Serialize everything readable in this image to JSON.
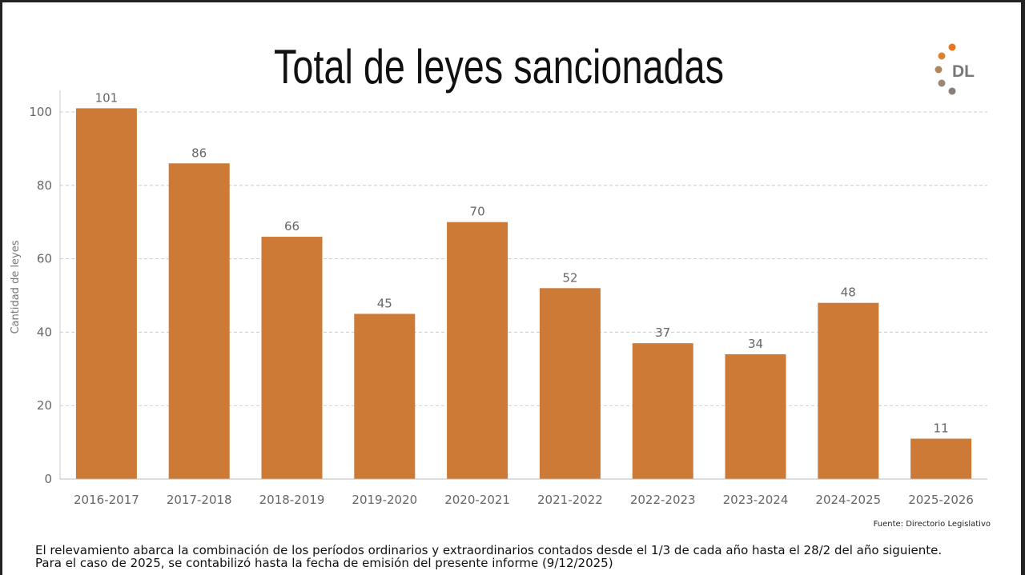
{
  "title": "Total de leyes sancionadas",
  "logo": {
    "text": "DL",
    "colors": [
      "#e8761e",
      "#d9822f",
      "#b08660",
      "#9c8878",
      "#8a7e78"
    ]
  },
  "source": "Fuente: Directorio Legislativo",
  "note": [
    "El relevamiento abarca la combinación de los períodos ordinarios y extraordinarios contados desde el 1/3 de cada año hasta el 28/2 del año siguiente.",
    "Para el caso de 2025, se contabilizó hasta la fecha de emisión del presente informe (9/12/2025)"
  ],
  "chart_data": {
    "type": "bar",
    "title": "Total de leyes sancionadas",
    "xlabel": "",
    "ylabel": "Cantidad de leyes",
    "categories": [
      "2016-2017",
      "2017-2018",
      "2018-2019",
      "2019-2020",
      "2020-2021",
      "2021-2022",
      "2022-2023",
      "2023-2024",
      "2024-2025",
      "2025-2026"
    ],
    "values": [
      101,
      86,
      66,
      45,
      70,
      52,
      37,
      34,
      48,
      11
    ],
    "ylim": [
      0,
      100
    ],
    "yticks": [
      0,
      20,
      40,
      60,
      80,
      100
    ],
    "grid": true,
    "bar_color": "#cc7a36"
  }
}
